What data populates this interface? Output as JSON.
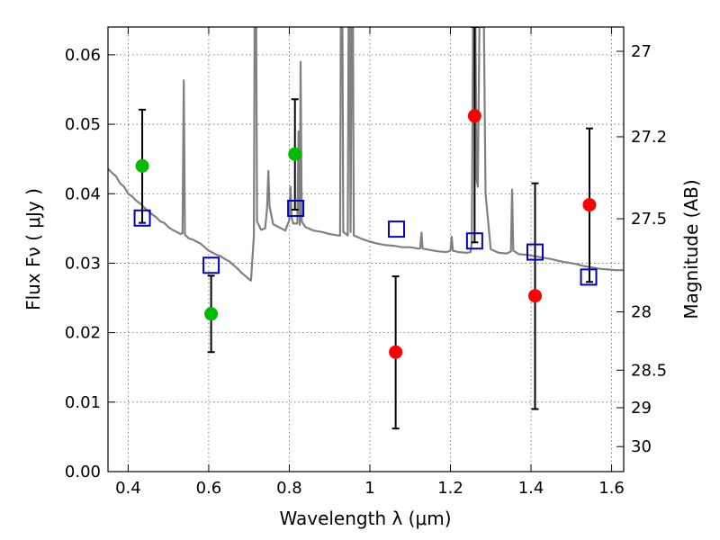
{
  "chart_data": {
    "type": "scatter",
    "xlabel": "Wavelength  λ (μm)",
    "ylabel": "Flux  Fν  ( μJy )",
    "ylabel_right": "Magnitude (AB)",
    "xlim": [
      0.35,
      1.63
    ],
    "ylim": [
      0.0,
      0.064
    ],
    "x_ticks": [
      0.4,
      0.6,
      0.8,
      1.0,
      1.2,
      1.4,
      1.6
    ],
    "x_tick_labels": [
      "0.4",
      "0.6",
      "0.8",
      "1",
      "1.2",
      "1.4",
      "1.6"
    ],
    "y_ticks": [
      0.0,
      0.01,
      0.02,
      0.03,
      0.04,
      0.05,
      0.06
    ],
    "y_tick_labels": [
      "0.00",
      "0.01",
      "0.02",
      "0.03",
      "0.04",
      "0.05",
      "0.06"
    ],
    "mag_ticks": [
      {
        "flux": 0.0605,
        "label": "27"
      },
      {
        "flux": 0.0482,
        "label": "27.2"
      },
      {
        "flux": 0.0364,
        "label": "27.5"
      },
      {
        "flux": 0.023,
        "label": "28"
      },
      {
        "flux": 0.0146,
        "label": "28.5"
      },
      {
        "flux": 0.0092,
        "label": "29"
      },
      {
        "flux": 0.0036,
        "label": "30"
      }
    ],
    "grid": true,
    "colors": {
      "green": "#00bb00",
      "red": "#ff0000",
      "square": "#0000cc",
      "spectrum": "#808080"
    },
    "series": [
      {
        "marker": "circle",
        "color": "green",
        "points": [
          {
            "x": 0.435,
            "y": 0.044,
            "err_low": 0.0358,
            "err_high": 0.0521
          },
          {
            "x": 0.606,
            "y": 0.0227,
            "err_low": 0.0172,
            "err_high": 0.0282
          },
          {
            "x": 0.814,
            "y": 0.0457,
            "err_low": 0.0377,
            "err_high": 0.0536
          }
        ]
      },
      {
        "marker": "circle",
        "color": "red",
        "points": [
          {
            "x": 1.064,
            "y": 0.0172,
            "err_low": 0.0062,
            "err_high": 0.0281
          },
          {
            "x": 1.26,
            "y": 0.0512,
            "err_low": 0.033,
            "err_high": 0.064
          },
          {
            "x": 1.41,
            "y": 0.0253,
            "err_low": 0.009,
            "err_high": 0.0415
          },
          {
            "x": 1.545,
            "y": 0.0384,
            "err_low": 0.0273,
            "err_high": 0.0494
          }
        ]
      },
      {
        "marker": "square",
        "color": "square",
        "points": [
          {
            "x": 0.435,
            "y": 0.0365
          },
          {
            "x": 0.606,
            "y": 0.0297
          },
          {
            "x": 0.816,
            "y": 0.0379
          },
          {
            "x": 1.066,
            "y": 0.0349
          },
          {
            "x": 1.26,
            "y": 0.0332
          },
          {
            "x": 1.41,
            "y": 0.0316
          },
          {
            "x": 1.543,
            "y": 0.028
          }
        ]
      }
    ],
    "spectrum": [
      [
        0.35,
        0.0436
      ],
      [
        0.36,
        0.043
      ],
      [
        0.37,
        0.0425
      ],
      [
        0.38,
        0.0415
      ],
      [
        0.39,
        0.041
      ],
      [
        0.4,
        0.04
      ],
      [
        0.41,
        0.0396
      ],
      [
        0.42,
        0.039
      ],
      [
        0.43,
        0.0386
      ],
      [
        0.44,
        0.038
      ],
      [
        0.45,
        0.0375
      ],
      [
        0.46,
        0.037
      ],
      [
        0.47,
        0.0366
      ],
      [
        0.48,
        0.036
      ],
      [
        0.49,
        0.0358
      ],
      [
        0.5,
        0.0352
      ],
      [
        0.51,
        0.0348
      ],
      [
        0.52,
        0.0345
      ],
      [
        0.53,
        0.0342
      ],
      [
        0.535,
        0.0343
      ],
      [
        0.538,
        0.0563
      ],
      [
        0.541,
        0.0341
      ],
      [
        0.55,
        0.0336
      ],
      [
        0.56,
        0.0334
      ],
      [
        0.57,
        0.0331
      ],
      [
        0.58,
        0.0328
      ],
      [
        0.59,
        0.0323
      ],
      [
        0.6,
        0.0318
      ],
      [
        0.61,
        0.0315
      ],
      [
        0.62,
        0.0312
      ],
      [
        0.63,
        0.031
      ],
      [
        0.64,
        0.0306
      ],
      [
        0.65,
        0.0303
      ],
      [
        0.66,
        0.0298
      ],
      [
        0.67,
        0.0293
      ],
      [
        0.68,
        0.0287
      ],
      [
        0.69,
        0.0282
      ],
      [
        0.7,
        0.0277
      ],
      [
        0.705,
        0.0275
      ],
      [
        0.712,
        0.034
      ],
      [
        0.714,
        0.064
      ],
      [
        0.718,
        0.064
      ],
      [
        0.72,
        0.036
      ],
      [
        0.73,
        0.0348
      ],
      [
        0.74,
        0.035
      ],
      [
        0.745,
        0.038
      ],
      [
        0.748,
        0.0433
      ],
      [
        0.751,
        0.0382
      ],
      [
        0.76,
        0.0356
      ],
      [
        0.77,
        0.0353
      ],
      [
        0.78,
        0.035
      ],
      [
        0.79,
        0.0347
      ],
      [
        0.8,
        0.0362
      ],
      [
        0.803,
        0.041
      ],
      [
        0.806,
        0.0365
      ],
      [
        0.81,
        0.0357
      ],
      [
        0.82,
        0.0357
      ],
      [
        0.823,
        0.049
      ],
      [
        0.826,
        0.0355
      ],
      [
        0.828,
        0.059
      ],
      [
        0.831,
        0.036
      ],
      [
        0.84,
        0.0352
      ],
      [
        0.86,
        0.0347
      ],
      [
        0.88,
        0.0345
      ],
      [
        0.9,
        0.0342
      ],
      [
        0.92,
        0.034
      ],
      [
        0.926,
        0.034
      ],
      [
        0.928,
        0.064
      ],
      [
        0.932,
        0.064
      ],
      [
        0.934,
        0.0345
      ],
      [
        0.945,
        0.034
      ],
      [
        0.947,
        0.064
      ],
      [
        0.95,
        0.064
      ],
      [
        0.952,
        0.0345
      ],
      [
        0.955,
        0.064
      ],
      [
        0.958,
        0.064
      ],
      [
        0.96,
        0.034
      ],
      [
        0.98,
        0.0335
      ],
      [
        1.0,
        0.0331
      ],
      [
        1.02,
        0.0328
      ],
      [
        1.04,
        0.0326
      ],
      [
        1.06,
        0.0325
      ],
      [
        1.08,
        0.0323
      ],
      [
        1.1,
        0.0323
      ],
      [
        1.12,
        0.0321
      ],
      [
        1.125,
        0.0321
      ],
      [
        1.128,
        0.0344
      ],
      [
        1.131,
        0.0321
      ],
      [
        1.15,
        0.0319
      ],
      [
        1.17,
        0.0317
      ],
      [
        1.19,
        0.0316
      ],
      [
        1.2,
        0.0318
      ],
      [
        1.203,
        0.0338
      ],
      [
        1.206,
        0.0318
      ],
      [
        1.22,
        0.0316
      ],
      [
        1.24,
        0.0315
      ],
      [
        1.25,
        0.0316
      ],
      [
        1.253,
        0.033
      ],
      [
        1.256,
        0.064
      ],
      [
        1.262,
        0.064
      ],
      [
        1.265,
        0.042
      ],
      [
        1.268,
        0.041
      ],
      [
        1.272,
        0.064
      ],
      [
        1.283,
        0.064
      ],
      [
        1.287,
        0.04
      ],
      [
        1.3,
        0.032
      ],
      [
        1.32,
        0.0315
      ],
      [
        1.34,
        0.0314
      ],
      [
        1.35,
        0.0317
      ],
      [
        1.353,
        0.0406
      ],
      [
        1.356,
        0.0318
      ],
      [
        1.37,
        0.0313
      ],
      [
        1.39,
        0.0312
      ],
      [
        1.41,
        0.031
      ],
      [
        1.43,
        0.0308
      ],
      [
        1.45,
        0.0306
      ],
      [
        1.47,
        0.0303
      ],
      [
        1.49,
        0.0301
      ],
      [
        1.51,
        0.0299
      ],
      [
        1.53,
        0.0296
      ],
      [
        1.55,
        0.0294
      ],
      [
        1.57,
        0.0292
      ],
      [
        1.59,
        0.0291
      ],
      [
        1.61,
        0.029
      ],
      [
        1.63,
        0.029
      ]
    ]
  }
}
